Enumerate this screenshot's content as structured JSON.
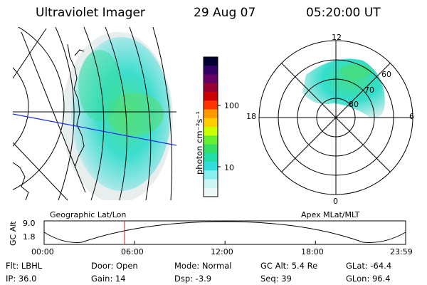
{
  "header": {
    "title": "Ultraviolet Imager",
    "date": "29 Aug 07",
    "time": "05:20:00 UT"
  },
  "colorbar": {
    "label": "photon cm⁻²s⁻¹",
    "ticks": [
      "100",
      "10"
    ],
    "colors": [
      "#000033",
      "#330066",
      "#660066",
      "#990033",
      "#cc0000",
      "#ff3300",
      "#ff9900",
      "#ffcc00",
      "#ccff00",
      "#66ee33",
      "#33dd66",
      "#22ddaa",
      "#33dddd",
      "#88eeee",
      "#ccf4f4",
      "#eef8f8"
    ]
  },
  "polar": {
    "mlt_labels": {
      "top": "12",
      "left": "18",
      "right": "6",
      "bottom": "0"
    },
    "lat_labels": [
      "60",
      "70",
      "80"
    ]
  },
  "map_labels": {
    "geo": "Geographic Lat/Lon",
    "apex": "Apex MLat/MLT"
  },
  "timeline": {
    "axis_label": "GC Alt",
    "y_ticks": [
      "9.0",
      "1.8"
    ],
    "x_ticks": [
      "00:00",
      "06:00",
      "12:00",
      "18:00",
      "23:59"
    ],
    "marker_time": "05:20"
  },
  "info": {
    "filter": "Flt: LBHL",
    "ip": "IP: 36.0",
    "door": "Door: Open",
    "gain": "Gain: 14",
    "mode": "Mode: Normal",
    "dsp": "Dsp:    -3.9",
    "gc_alt": "GC Alt: 5.4 Re",
    "seq": "Seq: 39",
    "glat": "GLat:  -64.4",
    "glon": "GLon:   96.4"
  }
}
